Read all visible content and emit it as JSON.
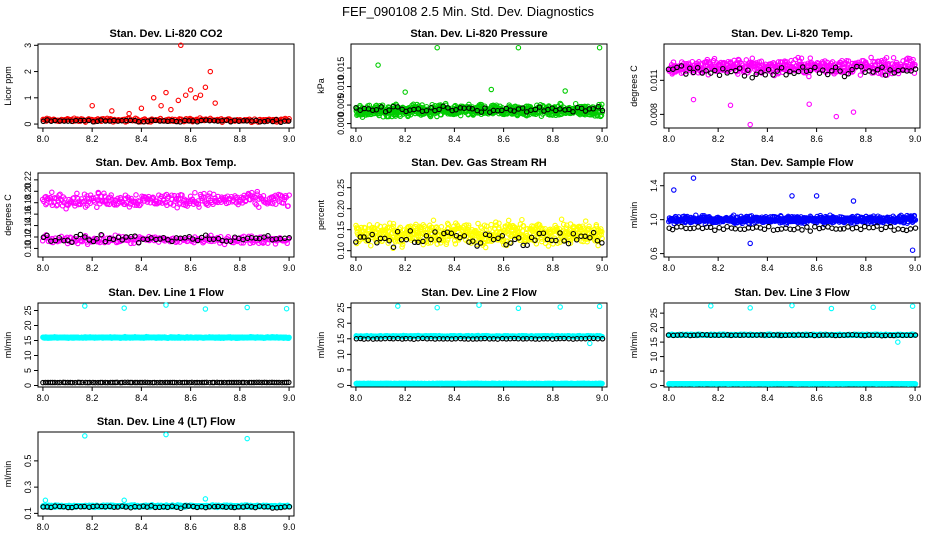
{
  "figure": {
    "title": "FEF_090108  2.5 Min. Std. Dev. Diagnostics"
  },
  "colors": {
    "red": "#ff0000",
    "green": "#00cc00",
    "magenta": "#ff00ff",
    "yellow": "#ffff00",
    "blue": "#0000ff",
    "cyan": "#00ffff",
    "black": "#000000"
  },
  "chart_data": [
    {
      "id": "co2",
      "type": "scatter",
      "title": "Stan. Dev. Li-820 CO2",
      "xlabel": "",
      "ylabel": "Licor ppm",
      "xlim": [
        7.98,
        9.02
      ],
      "ylim": [
        -0.15,
        3.05
      ],
      "xticks": [
        "8.0",
        "8.2",
        "8.4",
        "8.6",
        "8.8",
        "9.0"
      ],
      "xtick_values": [
        8.0,
        8.2,
        8.4,
        8.6,
        8.8,
        9.0
      ],
      "yticks": [
        "0",
        "1",
        "2",
        "3"
      ],
      "ytick_values": [
        0,
        1,
        2,
        3
      ],
      "series": [
        {
          "color": "#ff0000",
          "points": [
            [
              8.52,
              0.55
            ],
            [
              8.56,
              3.0
            ],
            [
              8.58,
              1.1
            ],
            [
              8.6,
              1.3
            ],
            [
              8.62,
              1.0
            ],
            [
              8.64,
              1.1
            ],
            [
              8.68,
              2.0
            ],
            [
              8.2,
              0.7
            ],
            [
              8.28,
              0.5
            ],
            [
              8.4,
              0.6
            ],
            [
              8.45,
              1.0
            ],
            [
              8.5,
              1.2
            ],
            [
              8.55,
              0.9
            ],
            [
              8.66,
              1.4
            ],
            [
              8.7,
              0.8
            ],
            [
              8.35,
              0.4
            ],
            [
              8.48,
              0.7
            ]
          ],
          "band": {
            "mean": 0.15,
            "spread": 0.1,
            "count": 230
          }
        },
        {
          "color": "#000000",
          "band": {
            "mean": 0.12,
            "spread": 0.06,
            "count": 60
          }
        }
      ]
    },
    {
      "id": "pressure",
      "type": "scatter",
      "title": "Stan. Dev. Li-820 Pressure",
      "xlabel": "",
      "ylabel": "kPa",
      "xlim": [
        7.98,
        9.02
      ],
      "ylim": [
        -0.0012,
        0.0215
      ],
      "xticks": [
        "8.0",
        "8.2",
        "8.4",
        "8.6",
        "8.8",
        "9.0"
      ],
      "xtick_values": [
        8.0,
        8.2,
        8.4,
        8.6,
        8.8,
        9.0
      ],
      "yticks": [
        "0.000",
        "0.005",
        "0.010",
        "0.015"
      ],
      "ytick_values": [
        0.0,
        0.005,
        0.01,
        0.015
      ],
      "series": [
        {
          "color": "#00cc00",
          "points": [
            [
              8.33,
              0.0205
            ],
            [
              8.66,
              0.0205
            ],
            [
              8.99,
              0.0205
            ],
            [
              8.09,
              0.0158
            ],
            [
              8.2,
              0.0085
            ],
            [
              8.55,
              0.0092
            ],
            [
              8.85,
              0.0088
            ]
          ],
          "band": {
            "mean": 0.0035,
            "spread": 0.0022,
            "count": 700
          }
        },
        {
          "color": "#000000",
          "band": {
            "mean": 0.0038,
            "spread": 0.0012,
            "count": 60
          }
        }
      ]
    },
    {
      "id": "temp",
      "type": "scatter",
      "title": "Stan. Dev. Li-820 Temp.",
      "xlabel": "",
      "ylabel": "degrees C",
      "xlim": [
        7.98,
        9.02
      ],
      "ylim": [
        0.0068,
        0.0142
      ],
      "xticks": [
        "8.0",
        "8.2",
        "8.4",
        "8.6",
        "8.8",
        "9.0"
      ],
      "xtick_values": [
        8.0,
        8.2,
        8.4,
        8.6,
        8.8,
        9.0
      ],
      "yticks": [
        "0.008",
        "0.011"
      ],
      "ytick_values": [
        0.008,
        0.011
      ],
      "series": [
        {
          "color": "#ff00ff",
          "points": [
            [
              8.33,
              0.0071
            ],
            [
              8.68,
              0.0078
            ],
            [
              8.75,
              0.0082
            ],
            [
              8.25,
              0.0088
            ],
            [
              8.1,
              0.0093
            ],
            [
              8.57,
              0.0089
            ]
          ],
          "band": {
            "mean": 0.0122,
            "spread": 0.001,
            "count": 500
          }
        },
        {
          "color": "#000000",
          "band": {
            "mean": 0.0118,
            "spread": 0.0008,
            "count": 60
          }
        }
      ]
    },
    {
      "id": "ambtemp",
      "type": "scatter",
      "title": "Stan. Dev. Amb. Box Temp.",
      "xlabel": "",
      "ylabel": "degrees C",
      "xlim": [
        7.98,
        9.02
      ],
      "ylim": [
        0.085,
        0.232
      ],
      "xticks": [
        "8.0",
        "8.2",
        "8.4",
        "8.6",
        "8.8",
        "9.0"
      ],
      "xtick_values": [
        8.0,
        8.2,
        8.4,
        8.6,
        8.8,
        9.0
      ],
      "yticks": [
        "0.10",
        "0.12",
        "0.14",
        "0.16",
        "0.18",
        "0.20",
        "0.22"
      ],
      "ytick_values": [
        0.1,
        0.12,
        0.14,
        0.16,
        0.18,
        0.2,
        0.22
      ],
      "series": [
        {
          "color": "#ff00ff",
          "band": {
            "mean": 0.185,
            "spread": 0.018,
            "count": 300
          }
        },
        {
          "color": "#ff00ff",
          "band": {
            "mean": 0.115,
            "spread": 0.01,
            "count": 220
          }
        },
        {
          "color": "#000000",
          "band": {
            "mean": 0.117,
            "spread": 0.01,
            "count": 60
          }
        }
      ]
    },
    {
      "id": "rh",
      "type": "scatter",
      "title": "Stan. Dev. Gas Stream RH",
      "xlabel": "",
      "ylabel": "percent",
      "xlim": [
        7.98,
        9.02
      ],
      "ylim": [
        0.085,
        0.285
      ],
      "xticks": [
        "8.0",
        "8.2",
        "8.4",
        "8.6",
        "8.8",
        "9.0"
      ],
      "xtick_values": [
        8.0,
        8.2,
        8.4,
        8.6,
        8.8,
        9.0
      ],
      "yticks": [
        "0.10",
        "0.15",
        "0.20",
        "0.25"
      ],
      "ytick_values": [
        0.1,
        0.15,
        0.2,
        0.25
      ],
      "series": [
        {
          "color": "#ffff00",
          "band": {
            "mean": 0.14,
            "spread": 0.04,
            "count": 600
          }
        },
        {
          "color": "#000000",
          "band": {
            "mean": 0.13,
            "spread": 0.025,
            "count": 60
          }
        }
      ]
    },
    {
      "id": "sampleflow",
      "type": "scatter",
      "title": "Stan. Dev. Sample Flow",
      "xlabel": "",
      "ylabel": "ml/min",
      "xlim": [
        7.98,
        9.02
      ],
      "ylim": [
        0.56,
        1.55
      ],
      "xticks": [
        "8.0",
        "8.2",
        "8.4",
        "8.6",
        "8.8",
        "9.0"
      ],
      "xtick_values": [
        8.0,
        8.2,
        8.4,
        8.6,
        8.8,
        9.0
      ],
      "yticks": [
        "0.6",
        "1.0",
        "1.4"
      ],
      "ytick_values": [
        0.6,
        1.0,
        1.4
      ],
      "series": [
        {
          "color": "#0000ff",
          "points": [
            [
              8.1,
              1.49
            ],
            [
              8.02,
              1.35
            ],
            [
              8.5,
              1.28
            ],
            [
              8.99,
              0.64
            ],
            [
              8.33,
              0.72
            ],
            [
              8.6,
              1.28
            ],
            [
              8.75,
              1.22
            ]
          ],
          "band": {
            "mean": 1.0,
            "spread": 0.06,
            "count": 650
          }
        },
        {
          "color": "#000000",
          "band": {
            "mean": 0.9,
            "spread": 0.05,
            "count": 60
          }
        }
      ]
    },
    {
      "id": "line1",
      "type": "scatter",
      "title": "Stan. Dev. Line 1 Flow",
      "xlabel": "",
      "ylabel": "ml/min",
      "xlim": [
        7.98,
        9.02
      ],
      "ylim": [
        -0.5,
        27.5
      ],
      "xticks": [
        "8.0",
        "8.2",
        "8.4",
        "8.6",
        "8.8",
        "9.0"
      ],
      "xtick_values": [
        8.0,
        8.2,
        8.4,
        8.6,
        8.8,
        9.0
      ],
      "yticks": [
        "0",
        "5",
        "10",
        "15",
        "20",
        "25"
      ],
      "ytick_values": [
        0,
        5,
        10,
        15,
        20,
        25
      ],
      "series": [
        {
          "color": "#00ffff",
          "points": [
            [
              8.17,
              26.5
            ],
            [
              8.33,
              25.8
            ],
            [
              8.5,
              26.8
            ],
            [
              8.66,
              25.5
            ],
            [
              8.83,
              26.0
            ],
            [
              8.99,
              25.6
            ]
          ],
          "band": {
            "mean": 16.0,
            "spread": 0.3,
            "count": 700
          }
        },
        {
          "color": "#000000",
          "band": {
            "mean": 1.0,
            "spread": 0.05,
            "count": 100
          }
        }
      ]
    },
    {
      "id": "line2",
      "type": "scatter",
      "title": "Stan. Dev. Line 2 Flow",
      "xlabel": "",
      "ylabel": "ml/min",
      "xlim": [
        7.98,
        9.02
      ],
      "ylim": [
        -0.5,
        26.5
      ],
      "xticks": [
        "8.0",
        "8.2",
        "8.4",
        "8.6",
        "8.8",
        "9.0"
      ],
      "xtick_values": [
        8.0,
        8.2,
        8.4,
        8.6,
        8.8,
        9.0
      ],
      "yticks": [
        "0",
        "5",
        "10",
        "15",
        "20",
        "25"
      ],
      "ytick_values": [
        0,
        5,
        10,
        15,
        20,
        25
      ],
      "series": [
        {
          "color": "#00ffff",
          "points": [
            [
              8.17,
              25.5
            ],
            [
              8.33,
              25.0
            ],
            [
              8.5,
              25.8
            ],
            [
              8.66,
              24.8
            ],
            [
              8.83,
              25.2
            ],
            [
              8.99,
              25.4
            ],
            [
              8.95,
              13.5
            ]
          ],
          "band": {
            "mean": 15.8,
            "spread": 0.3,
            "count": 600
          }
        },
        {
          "color": "#00ffff",
          "band": {
            "mean": 0.6,
            "spread": 0.1,
            "count": 600
          }
        },
        {
          "color": "#000000",
          "band": {
            "mean": 15.0,
            "spread": 0.2,
            "count": 60
          }
        }
      ]
    },
    {
      "id": "line3",
      "type": "scatter",
      "title": "Stan. Dev. Line 3 Flow",
      "xlabel": "",
      "ylabel": "ml/min",
      "xlim": [
        7.98,
        9.02
      ],
      "ylim": [
        -0.5,
        28.5
      ],
      "xticks": [
        "8.0",
        "8.2",
        "8.4",
        "8.6",
        "8.8",
        "9.0"
      ],
      "xtick_values": [
        8.0,
        8.2,
        8.4,
        8.6,
        8.8,
        9.0
      ],
      "yticks": [
        "0",
        "5",
        "10",
        "15",
        "20",
        "25"
      ],
      "ytick_values": [
        0,
        5,
        10,
        15,
        20,
        25
      ],
      "series": [
        {
          "color": "#00ffff",
          "points": [
            [
              8.17,
              27.5
            ],
            [
              8.33,
              26.8
            ],
            [
              8.5,
              27.6
            ],
            [
              8.66,
              26.6
            ],
            [
              8.83,
              27.0
            ],
            [
              8.99,
              27.4
            ],
            [
              8.93,
              15.0
            ]
          ],
          "band": {
            "mean": 17.5,
            "spread": 0.3,
            "count": 600
          }
        },
        {
          "color": "#00ffff",
          "band": {
            "mean": 0.6,
            "spread": 0.1,
            "count": 600
          }
        },
        {
          "color": "#000000",
          "band": {
            "mean": 17.4,
            "spread": 0.2,
            "count": 60
          }
        }
      ]
    },
    {
      "id": "line4",
      "type": "scatter",
      "title": "Stan. Dev. Line 4 (LT) Flow",
      "xlabel": "",
      "ylabel": "ml/min",
      "xlim": [
        7.98,
        9.02
      ],
      "ylim": [
        0.08,
        0.72
      ],
      "xticks": [
        "8.0",
        "8.2",
        "8.4",
        "8.6",
        "8.8",
        "9.0"
      ],
      "xtick_values": [
        8.0,
        8.2,
        8.4,
        8.6,
        8.8,
        9.0
      ],
      "yticks": [
        "0.1",
        "0.3",
        "0.5"
      ],
      "ytick_values": [
        0.1,
        0.3,
        0.5
      ],
      "series": [
        {
          "color": "#00ffff",
          "points": [
            [
              8.17,
              0.69
            ],
            [
              8.5,
              0.7
            ],
            [
              8.83,
              0.67
            ],
            [
              8.33,
              0.2
            ],
            [
              8.66,
              0.21
            ],
            [
              8.01,
              0.2
            ]
          ],
          "band": {
            "mean": 0.155,
            "spread": 0.012,
            "count": 600
          }
        },
        {
          "color": "#000000",
          "band": {
            "mean": 0.15,
            "spread": 0.012,
            "count": 60
          }
        }
      ]
    }
  ]
}
